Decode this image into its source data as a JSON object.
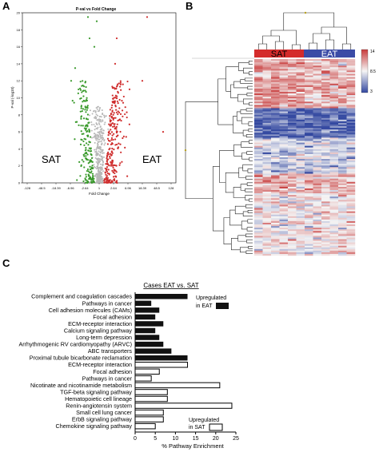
{
  "panels": {
    "a_letter": "A",
    "b_letter": "B",
    "c_letter": "C"
  },
  "chart_data": [
    {
      "type": "scatter",
      "title": "P-val vs Fold Change",
      "xlabel": "Fold Change",
      "ylabel": "P-val (-log10)",
      "x_ticks": [
        "-128",
        "-48.5",
        "-18.39",
        "-6.96",
        "-2.64",
        "1",
        "2.64",
        "6.96",
        "18.39",
        "48.5",
        "128"
      ],
      "y_ticks": [
        0,
        2,
        4,
        6,
        8,
        10,
        12,
        14,
        16,
        18,
        20
      ],
      "ylim": [
        0,
        20
      ],
      "annotations": [
        "SAT",
        "EAT"
      ],
      "colors": {
        "sat": "#3a9a2c",
        "eat": "#cf2d2d",
        "ns": "#b8b8b8"
      }
    },
    {
      "type": "heatmap",
      "groups": [
        "SAT",
        "EAT"
      ],
      "group_colors": [
        "#d42b2b",
        "#3b4ba6"
      ],
      "scale_ticks": [
        "14",
        "8.5",
        "3"
      ],
      "scale_colors": [
        "#c83a3a",
        "#f5f5f5",
        "#3348a0"
      ]
    },
    {
      "type": "bar",
      "title": "Cases EAT vs. SAT",
      "xlabel": "% Pathway Enrichment",
      "x_ticks": [
        0,
        5,
        10,
        15,
        20,
        25
      ],
      "xlim": [
        0,
        25
      ],
      "categories": [
        "Complement and coagulation cascades",
        "Pathways in cancer",
        "Cell adhesion molecules (CAMs)",
        "Focal adhesion",
        "ECM-receptor interaction",
        "Calcium signaling pathway",
        "Long-term depression",
        "Arrhythmogenic RV cardiomyopathy (ARVC)",
        "ABC transporters",
        "Proximal tubule bicarbonate reclamation",
        "ECM-receptor interaction",
        "Focal adhesion",
        "Pathways in cancer",
        "Nicotinate and nicotinamide metabolism",
        "TGF-beta signaling pathway",
        "Hematopoietic cell lineage",
        "Renin-angiotensin system",
        "Small cell lung cancer",
        "ErbB signaling pathway",
        "Chemokine signaling pathway"
      ],
      "values": [
        13,
        4,
        6,
        5,
        7,
        5,
        6,
        7,
        9,
        13,
        13,
        6,
        4,
        21,
        8,
        8,
        24,
        7,
        7,
        5
      ],
      "groups": [
        "EAT",
        "EAT",
        "EAT",
        "EAT",
        "EAT",
        "EAT",
        "EAT",
        "EAT",
        "EAT",
        "EAT",
        "SAT",
        "SAT",
        "SAT",
        "SAT",
        "SAT",
        "SAT",
        "SAT",
        "SAT",
        "SAT",
        "SAT"
      ],
      "legend": {
        "eat_line1": "Upregulated",
        "eat_line2": "in EAT",
        "sat_line1": "Upregulated",
        "sat_line2": "in SAT"
      }
    }
  ]
}
